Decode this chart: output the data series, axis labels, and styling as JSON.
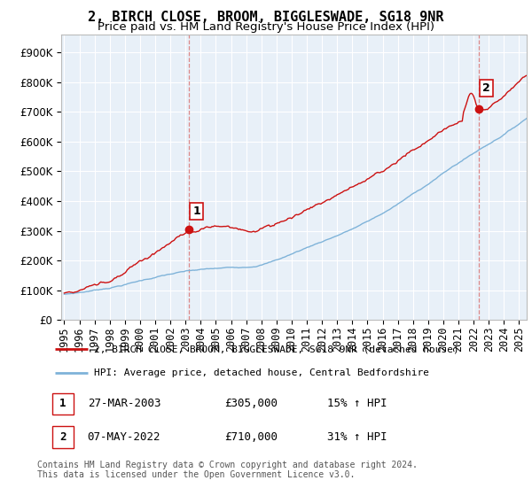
{
  "title": "2, BIRCH CLOSE, BROOM, BIGGLESWADE, SG18 9NR",
  "subtitle": "Price paid vs. HM Land Registry's House Price Index (HPI)",
  "ytick_values": [
    0,
    100000,
    200000,
    300000,
    400000,
    500000,
    600000,
    700000,
    800000,
    900000
  ],
  "ylim": [
    0,
    960000
  ],
  "xlim_start": 1994.8,
  "xlim_end": 2025.5,
  "sale1_x": 2003.23,
  "sale1_y": 305000,
  "sale1_label": "1",
  "sale2_x": 2022.35,
  "sale2_y": 710000,
  "sale2_label": "2",
  "hpi_color": "#7fb3d9",
  "price_color": "#cc1111",
  "dashed_line_color": "#dd8888",
  "background_color": "#ffffff",
  "plot_bg_color": "#e8f0f8",
  "grid_color": "#ffffff",
  "legend_entry1": "2, BIRCH CLOSE, BROOM, BIGGLESWADE, SG18 9NR (detached house)",
  "legend_entry2": "HPI: Average price, detached house, Central Bedfordshire",
  "table_row1_num": "1",
  "table_row1_date": "27-MAR-2003",
  "table_row1_price": "£305,000",
  "table_row1_hpi": "15% ↑ HPI",
  "table_row2_num": "2",
  "table_row2_date": "07-MAY-2022",
  "table_row2_price": "£710,000",
  "table_row2_hpi": "31% ↑ HPI",
  "footnote": "Contains HM Land Registry data © Crown copyright and database right 2024.\nThis data is licensed under the Open Government Licence v3.0.",
  "title_fontsize": 11,
  "subtitle_fontsize": 9.5,
  "tick_fontsize": 8.5
}
